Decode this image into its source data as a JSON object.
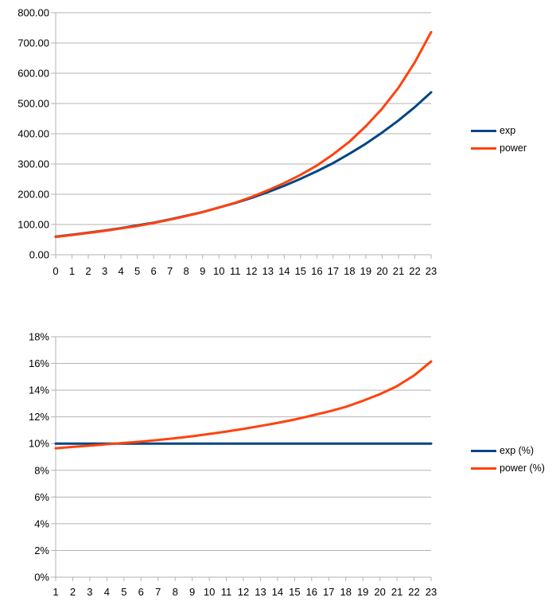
{
  "chart_data": [
    {
      "type": "line",
      "x": [
        0,
        1,
        2,
        3,
        4,
        5,
        6,
        7,
        8,
        9,
        10,
        11,
        12,
        13,
        14,
        15,
        16,
        17,
        18,
        19,
        20,
        21,
        22,
        23
      ],
      "ylim": [
        0,
        800
      ],
      "yticks": [
        "0.00",
        "100.00",
        "200.00",
        "300.00",
        "400.00",
        "500.00",
        "600.00",
        "700.00",
        "800.00"
      ],
      "grid": true,
      "legend_position": "right",
      "series": [
        {
          "name": "exp",
          "color": "#004586",
          "values": [
            60,
            66,
            73,
            80,
            88,
            97,
            106,
            117,
            129,
            141,
            156,
            171,
            188,
            207,
            228,
            251,
            276,
            303,
            334,
            367,
            404,
            444,
            488,
            537
          ]
        },
        {
          "name": "power",
          "color": "#ff420e",
          "values": [
            59,
            65,
            72,
            79,
            87,
            95,
            105,
            116,
            128,
            141,
            156,
            172,
            191,
            213,
            237,
            264,
            295,
            332,
            374,
            425,
            483,
            552,
            636,
            736
          ]
        }
      ]
    },
    {
      "type": "line",
      "x": [
        1,
        2,
        3,
        4,
        5,
        6,
        7,
        8,
        9,
        10,
        11,
        12,
        13,
        14,
        15,
        16,
        17,
        18,
        19,
        20,
        21,
        22,
        23
      ],
      "ylim": [
        0,
        18
      ],
      "yticks": [
        "0%",
        "2%",
        "4%",
        "6%",
        "8%",
        "10%",
        "12%",
        "14%",
        "16%",
        "18%"
      ],
      "grid": true,
      "legend_position": "right",
      "series": [
        {
          "name": "exp (%)",
          "color": "#004586",
          "values": [
            10,
            10,
            10,
            10,
            10,
            10,
            10,
            10,
            10,
            10,
            10,
            10,
            10,
            10,
            10,
            10,
            10,
            10,
            10,
            10,
            10,
            10,
            10
          ]
        },
        {
          "name": "power (%)",
          "color": "#ff420e",
          "values": [
            9.65,
            9.75,
            9.85,
            9.95,
            10.05,
            10.15,
            10.27,
            10.4,
            10.55,
            10.72,
            10.9,
            11.1,
            11.32,
            11.55,
            11.8,
            12.1,
            12.4,
            12.75,
            13.2,
            13.7,
            14.3,
            15.1,
            16.15
          ]
        }
      ]
    }
  ]
}
